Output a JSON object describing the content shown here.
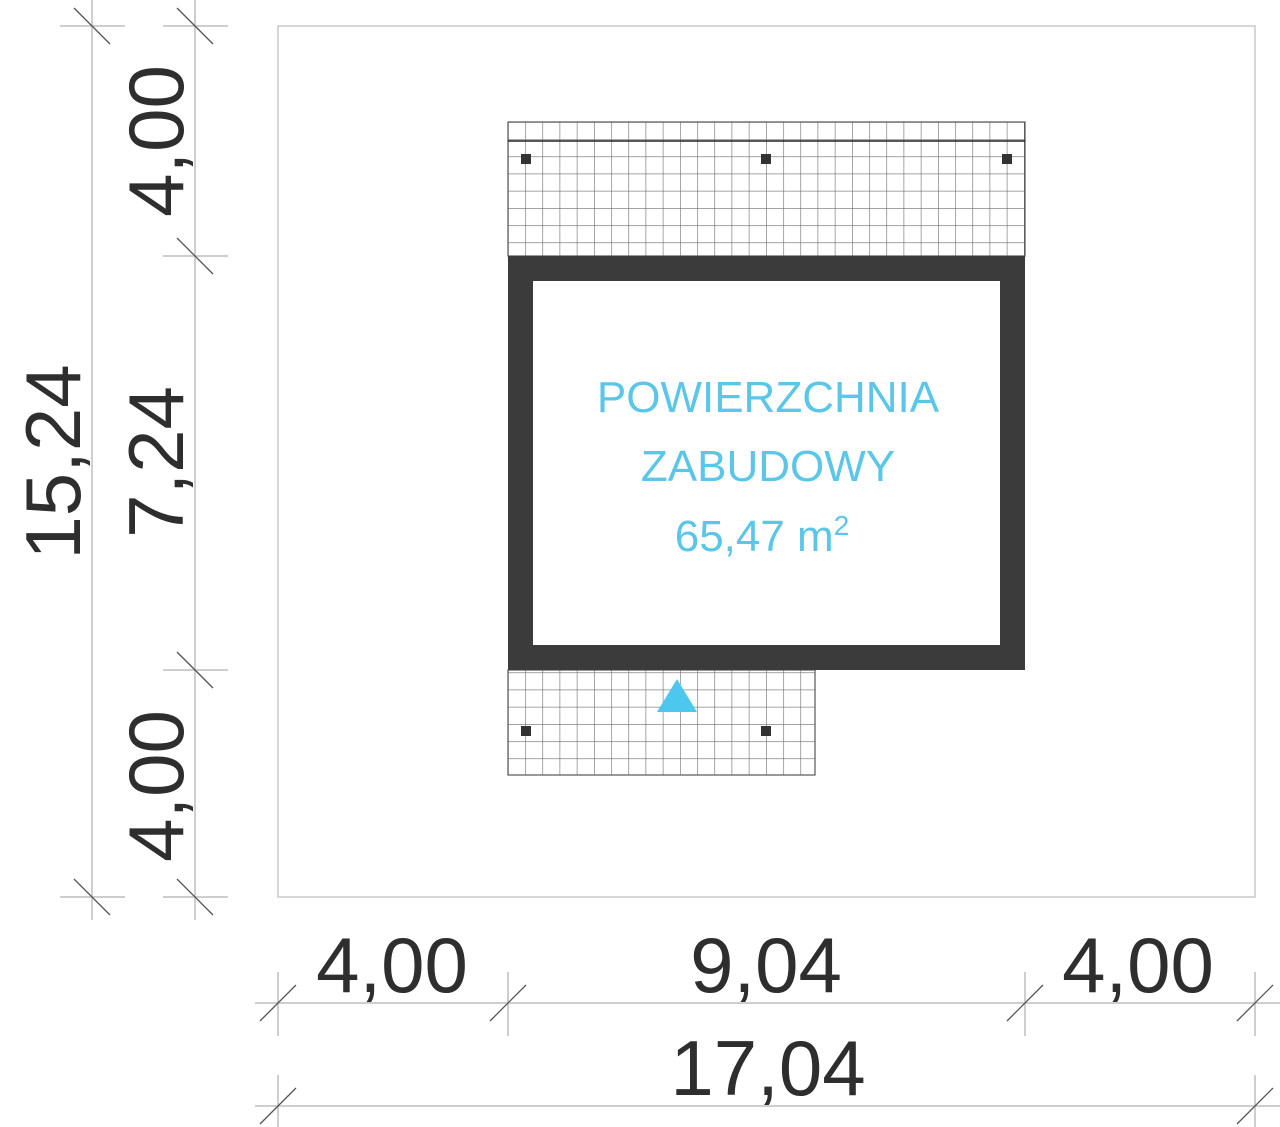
{
  "colors": {
    "wall": "#3b3b3b",
    "label": "#5cc6e8",
    "entrance_marker": "#4cc8ef",
    "dimension_text": "#2e2e2e"
  },
  "building_label": {
    "line1": "POWIERZCHNIA",
    "line2": "ZABUDOWY",
    "area_value": "65,47 m",
    "area_unit_superscript": "2"
  },
  "dimensions": {
    "left_total": "15,24",
    "left_top": "4,00",
    "left_middle": "7,24",
    "left_bottom": "4,00",
    "bottom_left": "4,00",
    "bottom_middle": "9,04",
    "bottom_right": "4,00",
    "bottom_total": "17,04"
  },
  "icons": {
    "entrance": "triangle-up"
  }
}
